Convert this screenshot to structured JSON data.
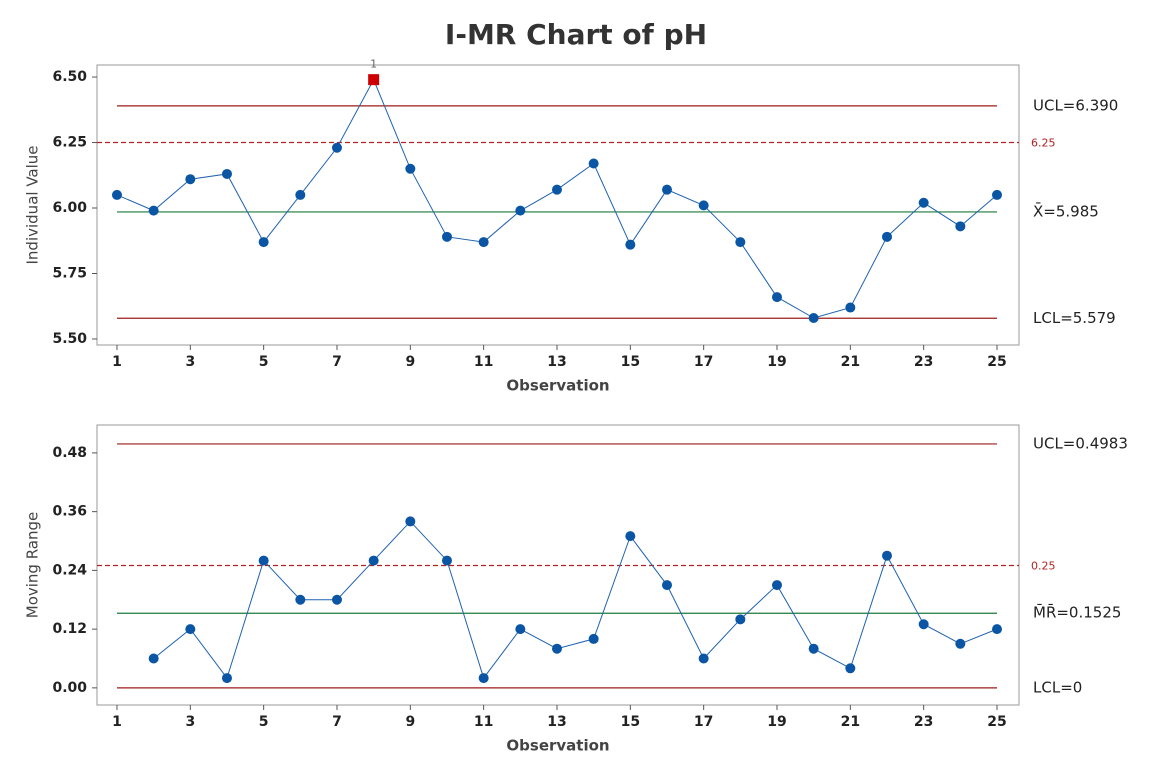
{
  "title": "I-MR Chart of pH",
  "chart_data": [
    {
      "type": "line",
      "xlabel": "Observation",
      "ylabel": "Individual Value",
      "x": [
        1,
        2,
        3,
        4,
        5,
        6,
        7,
        8,
        9,
        10,
        11,
        12,
        13,
        14,
        15,
        16,
        17,
        18,
        19,
        20,
        21,
        22,
        23,
        24,
        25
      ],
      "series": [
        {
          "color": "#1f62b0",
          "marker_color": "#0b56a4",
          "values": [
            6.05,
            5.99,
            6.11,
            6.13,
            5.87,
            6.05,
            6.23,
            6.49,
            6.15,
            5.89,
            5.87,
            5.99,
            6.07,
            6.17,
            5.86,
            6.07,
            6.01,
            5.87,
            5.66,
            5.58,
            5.62,
            5.89,
            6.02,
            5.93,
            6.05
          ]
        }
      ],
      "xlim": [
        0.455,
        25.6
      ],
      "xticks": [
        1,
        3,
        5,
        7,
        9,
        11,
        13,
        15,
        17,
        19,
        21,
        23,
        25
      ],
      "ylim": [
        5.477,
        6.546
      ],
      "yticks": [
        {
          "value": 5.5,
          "label": "5.50"
        },
        {
          "value": 5.75,
          "label": "5.75"
        },
        {
          "value": 6.0,
          "label": "6.00"
        },
        {
          "value": 6.25,
          "label": "6.25"
        },
        {
          "value": 6.5,
          "label": "6.50"
        }
      ],
      "control_lines": [
        {
          "label": "UCL=6.390",
          "value": 6.39,
          "color": "#9e1b1b"
        },
        {
          "label": "X̄=5.985",
          "value": 5.985,
          "color": "#1a7a3a"
        },
        {
          "label": "LCL=5.579",
          "value": 5.579,
          "color": "#9e1b1b"
        }
      ],
      "reference_lines": [
        {
          "label": "6.25",
          "value": 6.25,
          "color": "#b22222"
        }
      ],
      "annotations": [
        {
          "x": 8,
          "text": "1",
          "color": "#cc0000"
        }
      ]
    },
    {
      "type": "line",
      "xlabel": "Observation",
      "ylabel": "Moving Range",
      "x": [
        1,
        2,
        3,
        4,
        5,
        6,
        7,
        8,
        9,
        10,
        11,
        12,
        13,
        14,
        15,
        16,
        17,
        18,
        19,
        20,
        21,
        22,
        23,
        24,
        25
      ],
      "series": [
        {
          "color": "#1f62b0",
          "marker_color": "#0b56a4",
          "values": [
            null,
            0.06,
            0.12,
            0.02,
            0.26,
            0.18,
            0.18,
            0.26,
            0.34,
            0.26,
            0.02,
            0.12,
            0.08,
            0.1,
            0.31,
            0.21,
            0.06,
            0.14,
            0.21,
            0.08,
            0.04,
            0.27,
            0.13,
            0.09,
            0.12
          ]
        }
      ],
      "xlim": [
        0.455,
        25.6
      ],
      "xticks": [
        1,
        3,
        5,
        7,
        9,
        11,
        13,
        15,
        17,
        19,
        21,
        23,
        25
      ],
      "ylim": [
        -0.035,
        0.537
      ],
      "yticks": [
        {
          "value": 0,
          "label": "0.00"
        },
        {
          "value": 0.12,
          "label": "0.12"
        },
        {
          "value": 0.24,
          "label": "0.24"
        },
        {
          "value": 0.36,
          "label": "0.36"
        },
        {
          "value": 0.48,
          "label": "0.48"
        }
      ],
      "control_lines": [
        {
          "label": "UCL=0.4983",
          "value": 0.4983,
          "color": "#9e1b1b"
        },
        {
          "label": "M̄R̄=0.1525",
          "value": 0.1525,
          "color": "#1a7a3a"
        },
        {
          "label": "LCL=0",
          "value": 0,
          "color": "#9e1b1b"
        }
      ],
      "reference_lines": [
        {
          "label": "0.25",
          "value": 0.25,
          "color": "#b22222"
        }
      ],
      "annotations": []
    }
  ]
}
